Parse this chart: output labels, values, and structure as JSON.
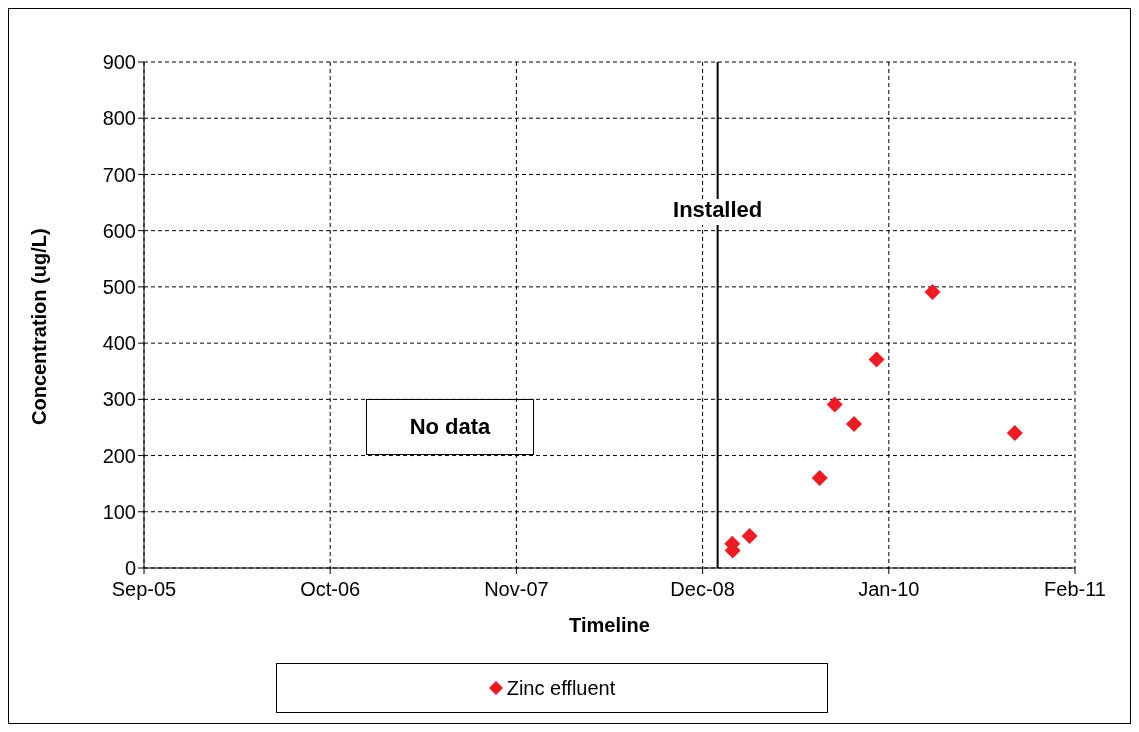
{
  "chart_data": {
    "type": "scatter",
    "xlabel": "Timeline",
    "ylabel": "Concentration (ug/L)",
    "x": [
      "2009-02-03",
      "2009-02-04",
      "2009-03-12",
      "2009-08-08",
      "2009-09-09",
      "2009-10-20",
      "2009-12-07",
      "2010-04-05",
      "2010-09-27"
    ],
    "series": [
      {
        "name": "Zinc effluent",
        "color": "#ed1c24",
        "values": [
          43,
          31,
          57,
          160,
          291,
          256,
          371,
          491,
          240
        ]
      }
    ],
    "xlim": [
      "2005-09-01",
      "2011-02-02"
    ],
    "xticks": [
      {
        "value": "2005-09-01",
        "label": "Sep-05"
      },
      {
        "value": "2006-10-02",
        "label": "Oct-06"
      },
      {
        "value": "2007-11-02",
        "label": "Nov-07"
      },
      {
        "value": "2008-12-02",
        "label": "Dec-08"
      },
      {
        "value": "2010-01-02",
        "label": "Jan-10"
      },
      {
        "value": "2011-02-02",
        "label": "Feb-11"
      }
    ],
    "ylim": [
      0,
      900
    ],
    "yticks": [
      0,
      100,
      200,
      300,
      400,
      500,
      600,
      700,
      800,
      900
    ],
    "ref_lines": [
      {
        "axis": "x",
        "value": "2009-01-03",
        "label": "Installed",
        "color": "#000000"
      }
    ],
    "annotations": [
      "No data"
    ],
    "grid": true,
    "legend": "bottom",
    "marker": "diamond"
  }
}
